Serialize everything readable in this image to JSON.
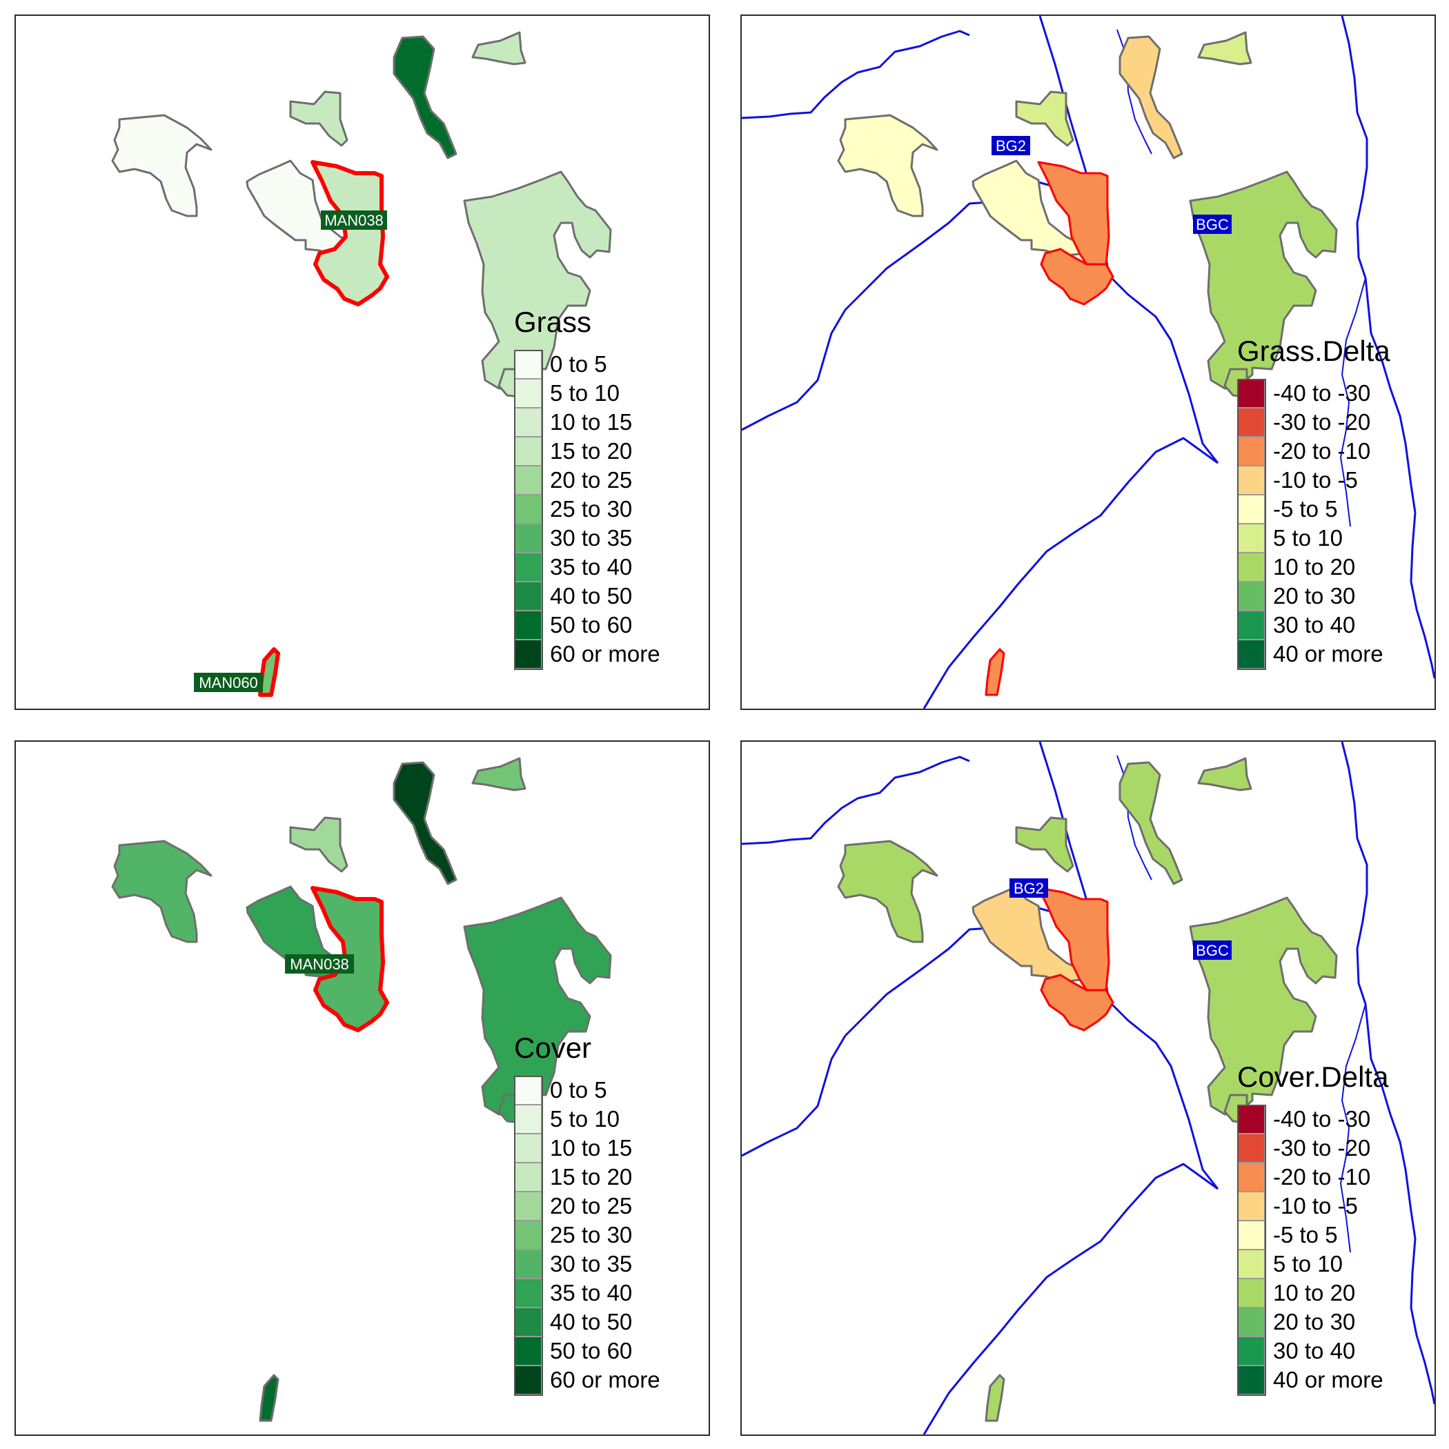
{
  "panels": [
    {
      "id": "grass",
      "legend": {
        "title": "Grass",
        "items": [
          {
            "label": "0 to 5",
            "color": "#f7fcf5"
          },
          {
            "label": "5 to 10",
            "color": "#e5f5e0"
          },
          {
            "label": "10 to 15",
            "color": "#d4eecf"
          },
          {
            "label": "15 to 20",
            "color": "#c7e9c0"
          },
          {
            "label": "20 to 25",
            "color": "#a1d99b"
          },
          {
            "label": "25 to 30",
            "color": "#74c476"
          },
          {
            "label": "30 to 35",
            "color": "#52b466"
          },
          {
            "label": "35 to 40",
            "color": "#31a354"
          },
          {
            "label": "40 to 50",
            "color": "#1d8a45"
          },
          {
            "label": "50 to 60",
            "color": "#006d2c"
          },
          {
            "label": "60 or more",
            "color": "#00441b"
          }
        ]
      },
      "labels": {
        "site_main": "MAN038",
        "site_south": "MAN060"
      }
    },
    {
      "id": "grass-delta",
      "legend": {
        "title": "Grass.Delta",
        "items": [
          {
            "label": "-40 to -30",
            "color": "#a50026"
          },
          {
            "label": "-30 to -20",
            "color": "#e34a33"
          },
          {
            "label": "-20 to -10",
            "color": "#f88d52"
          },
          {
            "label": "-10 to -5",
            "color": "#fdd483"
          },
          {
            "label": "-5 to 5",
            "color": "#ffffc6"
          },
          {
            "label": "5 to 10",
            "color": "#d9ef8b"
          },
          {
            "label": "10 to 20",
            "color": "#aad866"
          },
          {
            "label": "20 to 30",
            "color": "#66bd63"
          },
          {
            "label": "30 to 40",
            "color": "#1a9850"
          },
          {
            "label": "40 or more",
            "color": "#006837"
          }
        ]
      },
      "labels": {
        "site_a": "BG2",
        "site_b": "BGC"
      }
    },
    {
      "id": "cover",
      "legend": {
        "title": "Cover",
        "items": [
          {
            "label": "0 to 5",
            "color": "#f7fcf5"
          },
          {
            "label": "5 to 10",
            "color": "#e5f5e0"
          },
          {
            "label": "10 to 15",
            "color": "#d4eecf"
          },
          {
            "label": "15 to 20",
            "color": "#c7e9c0"
          },
          {
            "label": "20 to 25",
            "color": "#a1d99b"
          },
          {
            "label": "25 to 30",
            "color": "#74c476"
          },
          {
            "label": "30 to 35",
            "color": "#52b466"
          },
          {
            "label": "35 to 40",
            "color": "#31a354"
          },
          {
            "label": "40 to 50",
            "color": "#1d8a45"
          },
          {
            "label": "50 to 60",
            "color": "#006d2c"
          },
          {
            "label": "60 or more",
            "color": "#00441b"
          }
        ]
      },
      "labels": {
        "site_main": "MAN038"
      }
    },
    {
      "id": "cover-delta",
      "legend": {
        "title": "Cover.Delta",
        "items": [
          {
            "label": "-40 to -30",
            "color": "#a50026"
          },
          {
            "label": "-30 to -20",
            "color": "#e34a33"
          },
          {
            "label": "-20 to -10",
            "color": "#f88d52"
          },
          {
            "label": "-10 to -5",
            "color": "#fdd483"
          },
          {
            "label": "-5 to 5",
            "color": "#ffffc6"
          },
          {
            "label": "5 to 10",
            "color": "#d9ef8b"
          },
          {
            "label": "10 to 20",
            "color": "#aad866"
          },
          {
            "label": "20 to 30",
            "color": "#66bd63"
          },
          {
            "label": "30 to 40",
            "color": "#1a9850"
          },
          {
            "label": "40 or more",
            "color": "#006837"
          }
        ]
      },
      "labels": {
        "site_a": "BG2",
        "site_b": "BGC"
      }
    }
  ],
  "styles": {
    "highlight_border": "#ff0000",
    "polygon_border": "#6e6e6e",
    "river_color": "#1010e0",
    "site_label_green_bg": "#0b5e1e",
    "site_label_blue_bg": "#0000cc"
  }
}
